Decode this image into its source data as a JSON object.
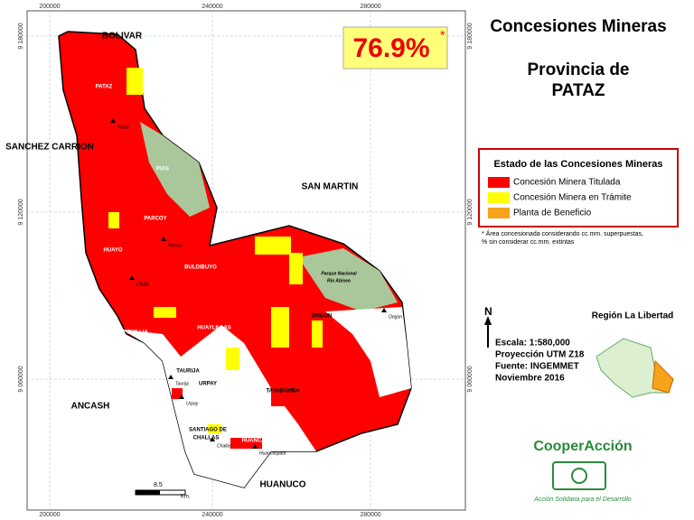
{
  "header": {
    "title": "Concesiones Mineras",
    "subtitle": "Provincia de",
    "province": "PATAZ"
  },
  "badge": {
    "value": "76.9%",
    "mark": "*"
  },
  "legend": {
    "title": "Estado de las Concesiones Mineras",
    "items": [
      {
        "label": "Concesión Minera Titulada",
        "color": "#ff0000"
      },
      {
        "label": "Concesión Minera en Trámite",
        "color": "#ffff00"
      },
      {
        "label": "Planta de Beneficio",
        "color": "#f7a21b"
      }
    ]
  },
  "footnote": [
    "* Área concesionada considerando cc.mm. superpuestas,",
    "% sin considerar cc.mm. extintas"
  ],
  "map": {
    "grid_top": [
      "200000",
      "240000",
      "280000"
    ],
    "grid_left": [
      "9 180000",
      "9 120000",
      "9 060000"
    ],
    "regions": [
      "BOLIVAR",
      "SANCHEZ CARRION",
      "SAN MARTIN",
      "ANCASH",
      "HUANUCO"
    ],
    "districts": [
      "PATAZ",
      "PIAS",
      "PARCOY",
      "HUAYO",
      "BULDIBUYO",
      "HUAYLILLAS",
      "ONGON",
      "CHILLIA",
      "TAURIJA",
      "URPAY",
      "TAYABAMBA",
      "SANTIAGO DE",
      "CHALLAS",
      "HUANCASPATA"
    ],
    "towns": [
      "Pataz",
      "Parcoy",
      "Chillia",
      "Taurija",
      "Urpay",
      "Challas",
      "Huancaspata",
      "Ongon"
    ],
    "park": [
      "Parque Nacional",
      "Río Abiseo"
    ],
    "scale_bar": [
      "8.5",
      "Km."
    ]
  },
  "info": {
    "north": "N",
    "lines": [
      "Escala: 1:580,000",
      "Proyección UTM Z18",
      "Fuente: INGEMMET",
      "Noviembre  2016"
    ],
    "region": "Región La Libertad"
  },
  "brand": {
    "name": "CooperAcción",
    "tagline": "Acción Solidaria para el Desarrollo"
  }
}
